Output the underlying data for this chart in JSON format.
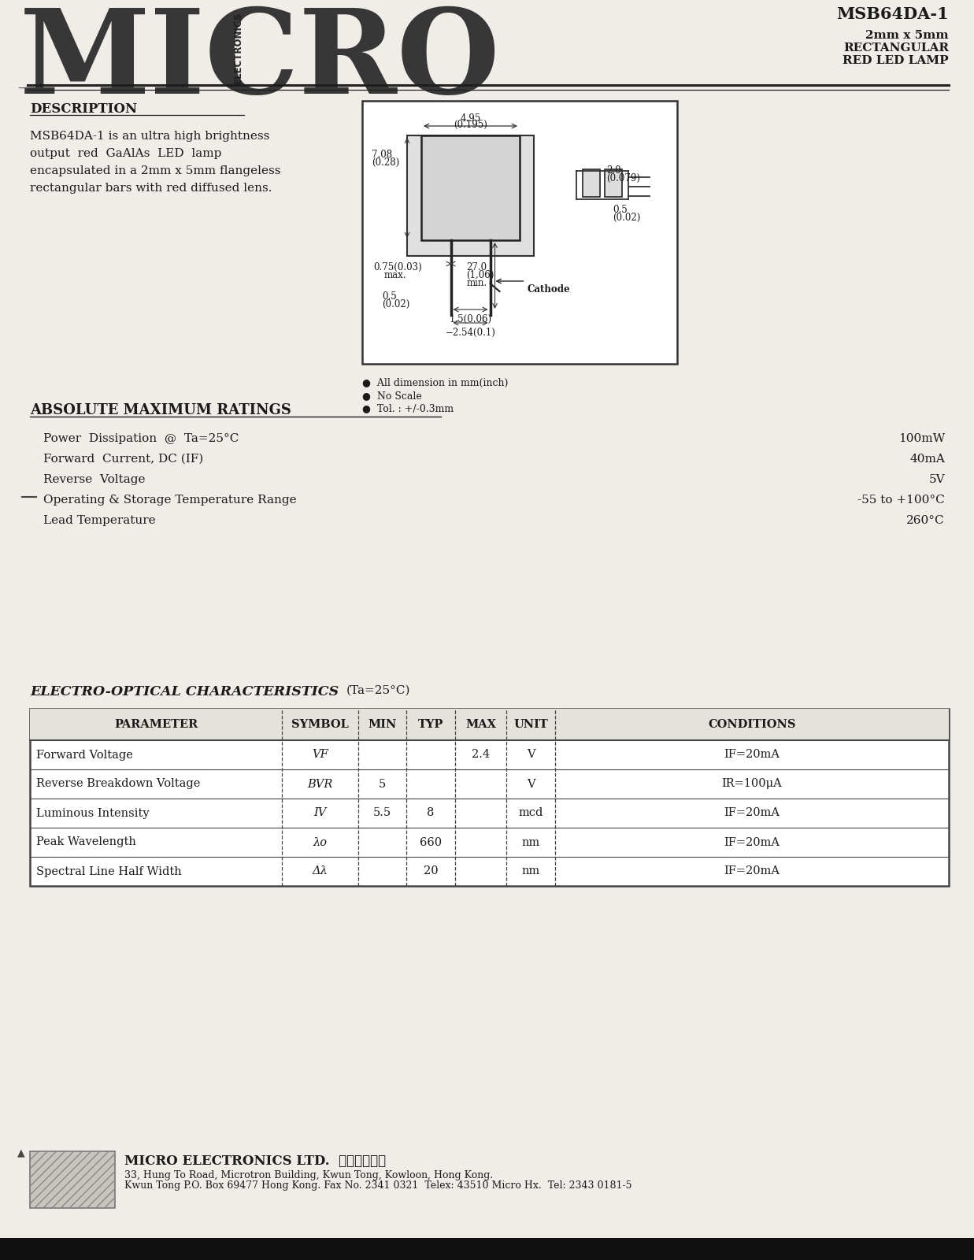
{
  "title_model": "MSB64DA-1",
  "title_size": "2mm x 5mm",
  "title_type": "RECTANGULAR",
  "title_desc": "RED LED LAMP",
  "description_title": "DESCRIPTION",
  "description_lines": [
    "MSB64DA-1 is an ultra high brightness",
    "output  red  GaAlAs  LED  lamp",
    "encapsulated in a 2mm x 5mm flangeless",
    "rectangular bars with red diffused lens."
  ],
  "abs_max_title": "ABSOLUTE MAXIMUM RATINGS",
  "abs_max_params": [
    "Power  Dissipation  @  Ta=25°C",
    "Forward  Current, DC (IF)",
    "Reverse  Voltage",
    "Operating & Storage Temperature Range",
    "Lead Temperature"
  ],
  "abs_max_values": [
    "100mW",
    "40mA",
    "5V",
    "-55 to +100°C",
    "260°C"
  ],
  "electro_title": "ELECTRO-OPTICAL CHARACTERISTICS",
  "electro_condition": "(Ta=25°C)",
  "table_headers": [
    "PARAMETER",
    "SYMBOL",
    "MIN",
    "TYP",
    "MAX",
    "UNIT",
    "CONDITIONS"
  ],
  "table_rows": [
    [
      "Forward Voltage",
      "VF",
      "",
      "",
      "2.4",
      "V",
      "IF=20mA"
    ],
    [
      "Reverse Breakdown Voltage",
      "BVR",
      "5",
      "",
      "",
      "V",
      "IR=100μA"
    ],
    [
      "Luminous Intensity",
      "IV",
      "5.5",
      "8",
      "",
      "mcd",
      "IF=20mA"
    ],
    [
      "Peak Wavelength",
      "λo",
      "",
      "660",
      "",
      "nm",
      "IF=20mA"
    ],
    [
      "Spectral Line Half Width",
      "Δλ",
      "",
      "20",
      "",
      "nm",
      "IF=20mA"
    ]
  ],
  "footer_company": "MICRO ELECTRONICS LTD.  美科有限公司",
  "footer_addr1": "33, Hung To Road, Microtron Building, Kwun Tong, Kowloon, Hong Kong.",
  "footer_addr2": "Kwun Tong P.O. Box 69477 Hong Kong. Fax No. 2341 0321  Telex: 43510 Micro Hx.  Tel: 2343 0181-5",
  "bg_color": "#f0ede8",
  "text_color": "#1a1a1a",
  "line_color": "#222222",
  "table_line_color": "#444444"
}
